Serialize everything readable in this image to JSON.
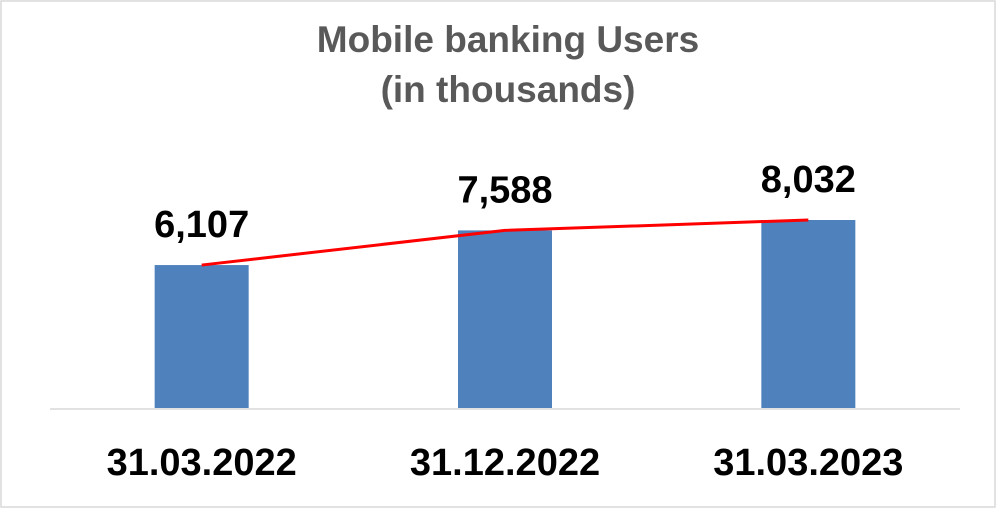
{
  "chart_data": {
    "type": "bar",
    "title": [
      "Mobile banking Users",
      "(in thousands)"
    ],
    "categories": [
      "31.03.2022",
      "31.12.2022",
      "31.03.2023"
    ],
    "values": [
      6107,
      7588,
      8032
    ],
    "value_labels": [
      "6,107",
      "7,588",
      "8,032"
    ],
    "color": "#4f81bd",
    "line_color": "#ff0000"
  }
}
